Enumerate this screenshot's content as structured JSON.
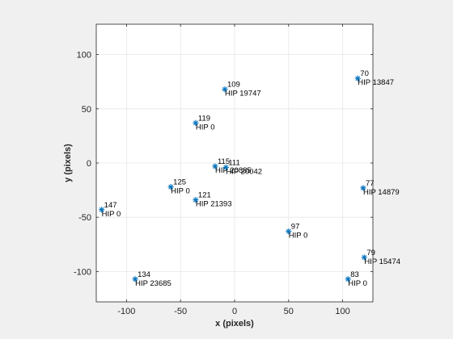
{
  "chart_data": {
    "type": "scatter",
    "title": "",
    "xlabel": "x (pixels)",
    "ylabel": "y (pixels)",
    "xlim": [
      -128,
      128
    ],
    "ylim": [
      -128,
      128
    ],
    "xticks": [
      -100,
      -50,
      0,
      50,
      100
    ],
    "yticks": [
      -100,
      -50,
      0,
      50,
      100
    ],
    "xtick_labels": [
      "-100",
      "-50",
      "0",
      "50",
      "100"
    ],
    "ytick_labels": [
      "-100",
      "-50",
      "0",
      "50",
      "100"
    ],
    "grid": true,
    "marker": "asterisk",
    "colors": {
      "marker": "#0072bd",
      "grid": "#e6e6e6",
      "axes": "#262626",
      "plot_bg": "#ffffff",
      "figure_bg": "#f0f0f0"
    },
    "points": [
      {
        "x": 114,
        "y": 78,
        "id": "70",
        "hip": "HIP 13847"
      },
      {
        "x": -9,
        "y": 68,
        "id": "109",
        "hip": "HIP 19747"
      },
      {
        "x": -36,
        "y": 37,
        "id": "119",
        "hip": "HIP 0"
      },
      {
        "x": -18,
        "y": -3,
        "id": "115",
        "hip": "HIP 20885"
      },
      {
        "x": -8,
        "y": -4,
        "id": "111",
        "hip": "HIP 20042"
      },
      {
        "x": -59,
        "y": -22,
        "id": "125",
        "hip": "HIP 0"
      },
      {
        "x": -36,
        "y": -34,
        "id": "121",
        "hip": "HIP 21393"
      },
      {
        "x": -123,
        "y": -43,
        "id": "147",
        "hip": "HIP 0"
      },
      {
        "x": 119,
        "y": -23,
        "id": "77",
        "hip": "HIP 14879"
      },
      {
        "x": 50,
        "y": -63,
        "id": "97",
        "hip": "HIP 0"
      },
      {
        "x": 120,
        "y": -87,
        "id": "79",
        "hip": "HIP 15474"
      },
      {
        "x": -92,
        "y": -107,
        "id": "134",
        "hip": "HIP 23685"
      },
      {
        "x": 105,
        "y": -107,
        "id": "83",
        "hip": "HIP 0"
      }
    ]
  }
}
